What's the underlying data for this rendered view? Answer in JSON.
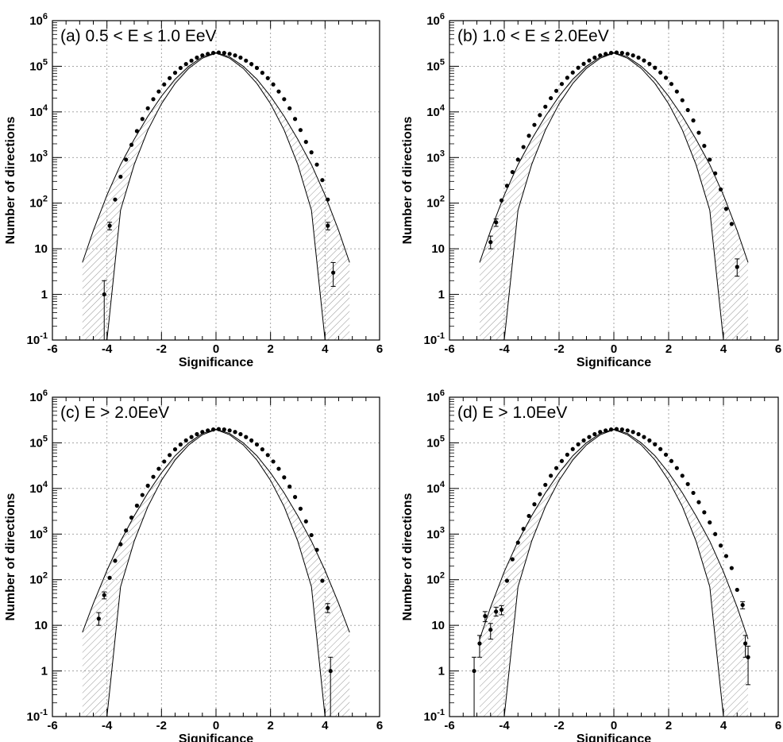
{
  "chart_data": [
    {
      "type": "scatter",
      "panel_label": "(a) 0.5 < E ≤ 1.0 EeV",
      "xlabel": "Significance",
      "ylabel": "Number of directions",
      "xlim": [
        -6,
        6
      ],
      "ylim": [
        0.1,
        1000000
      ],
      "log_y": true,
      "grid": true,
      "x_ticks": [
        "-6",
        "-4",
        "-2",
        "0",
        "2",
        "4",
        "6"
      ],
      "y_ticks": [
        "10-1",
        "1",
        "10",
        "102",
        "103",
        "104",
        "105",
        "106"
      ],
      "band_x": [
        -4.9,
        -4.5,
        -4.0,
        -3.5,
        -3.0,
        -2.5,
        -2.0,
        -1.5,
        -1.0,
        -0.5,
        0.0,
        0.5,
        1.0,
        1.5,
        2.0,
        2.5,
        3.0,
        3.5,
        4.0,
        4.5,
        4.9
      ],
      "band_upper": [
        5,
        25,
        150,
        700,
        2500,
        8000,
        22000,
        52000,
        100000,
        160000,
        200000,
        160000,
        100000,
        52000,
        22000,
        8000,
        2500,
        700,
        150,
        25,
        5
      ],
      "band_lower": [
        0.1,
        0.1,
        0.1,
        70,
        700,
        4000,
        15000,
        42000,
        90000,
        150000,
        195000,
        150000,
        90000,
        42000,
        15000,
        4000,
        700,
        70,
        0.1,
        0.1,
        0.1
      ],
      "points": [
        {
          "x": -4.1,
          "y": 1,
          "err": [
            0.1,
            2
          ]
        },
        {
          "x": -3.9,
          "y": 32,
          "err": [
            26,
            38
          ]
        },
        {
          "x": -3.7,
          "y": 120
        },
        {
          "x": -3.5,
          "y": 380
        },
        {
          "x": -3.3,
          "y": 900
        },
        {
          "x": -3.1,
          "y": 1900
        },
        {
          "x": -2.9,
          "y": 3800
        },
        {
          "x": -2.7,
          "y": 7000
        },
        {
          "x": -2.5,
          "y": 12000
        },
        {
          "x": -2.3,
          "y": 19000
        },
        {
          "x": -2.1,
          "y": 28000
        },
        {
          "x": -1.9,
          "y": 40000
        },
        {
          "x": -1.7,
          "y": 55000
        },
        {
          "x": -1.5,
          "y": 72000
        },
        {
          "x": -1.3,
          "y": 92000
        },
        {
          "x": -1.1,
          "y": 112000
        },
        {
          "x": -0.9,
          "y": 133000
        },
        {
          "x": -0.7,
          "y": 155000
        },
        {
          "x": -0.5,
          "y": 173000
        },
        {
          "x": -0.3,
          "y": 187000
        },
        {
          "x": -0.1,
          "y": 196000
        },
        {
          "x": 0.1,
          "y": 200000
        },
        {
          "x": 0.3,
          "y": 196000
        },
        {
          "x": 0.5,
          "y": 187000
        },
        {
          "x": 0.7,
          "y": 173000
        },
        {
          "x": 0.9,
          "y": 155000
        },
        {
          "x": 1.1,
          "y": 133000
        },
        {
          "x": 1.3,
          "y": 112000
        },
        {
          "x": 1.5,
          "y": 92000
        },
        {
          "x": 1.7,
          "y": 72000
        },
        {
          "x": 1.9,
          "y": 55000
        },
        {
          "x": 2.1,
          "y": 40000
        },
        {
          "x": 2.3,
          "y": 28000
        },
        {
          "x": 2.5,
          "y": 19000
        },
        {
          "x": 2.7,
          "y": 12000
        },
        {
          "x": 2.9,
          "y": 7000
        },
        {
          "x": 3.1,
          "y": 4000
        },
        {
          "x": 3.3,
          "y": 2200
        },
        {
          "x": 3.5,
          "y": 1300
        },
        {
          "x": 3.7,
          "y": 700
        },
        {
          "x": 3.9,
          "y": 320
        },
        {
          "x": 4.1,
          "y": 120
        },
        {
          "x": 4.1,
          "y": 32,
          "err": [
            26,
            38
          ]
        },
        {
          "x": 4.3,
          "y": 3,
          "err": [
            1.5,
            5
          ]
        }
      ]
    },
    {
      "type": "scatter",
      "panel_label": "(b) 1.0 < E ≤ 2.0EeV",
      "xlabel": "Significance",
      "ylabel": "Number of directions",
      "xlim": [
        -6,
        6
      ],
      "ylim": [
        0.1,
        1000000
      ],
      "log_y": true,
      "grid": true,
      "x_ticks": [
        "-6",
        "-4",
        "-2",
        "0",
        "2",
        "4",
        "6"
      ],
      "y_ticks": [
        "10-1",
        "1",
        "10",
        "102",
        "103",
        "104",
        "105",
        "106"
      ],
      "band_x": [
        -4.9,
        -4.5,
        -4.0,
        -3.5,
        -3.0,
        -2.5,
        -2.0,
        -1.5,
        -1.0,
        -0.5,
        0.0,
        0.5,
        1.0,
        1.5,
        2.0,
        2.5,
        3.0,
        3.5,
        4.0,
        4.5,
        4.9
      ],
      "band_upper": [
        5,
        25,
        150,
        700,
        2500,
        8000,
        22000,
        52000,
        100000,
        160000,
        200000,
        160000,
        100000,
        52000,
        22000,
        8000,
        2500,
        700,
        150,
        25,
        5
      ],
      "band_lower": [
        0.1,
        0.1,
        0.1,
        70,
        700,
        4000,
        15000,
        42000,
        90000,
        150000,
        195000,
        150000,
        90000,
        42000,
        15000,
        4000,
        700,
        70,
        0.1,
        0.1,
        0.1
      ],
      "points": [
        {
          "x": -4.5,
          "y": 14,
          "err": [
            10,
            19
          ]
        },
        {
          "x": -4.3,
          "y": 38,
          "err": [
            31,
            45
          ]
        },
        {
          "x": -4.1,
          "y": 115
        },
        {
          "x": -3.9,
          "y": 240
        },
        {
          "x": -3.7,
          "y": 480
        },
        {
          "x": -3.5,
          "y": 900
        },
        {
          "x": -3.3,
          "y": 1700
        },
        {
          "x": -3.1,
          "y": 3000
        },
        {
          "x": -2.9,
          "y": 5200
        },
        {
          "x": -2.7,
          "y": 8500
        },
        {
          "x": -2.5,
          "y": 13000
        },
        {
          "x": -2.3,
          "y": 20000
        },
        {
          "x": -2.1,
          "y": 29000
        },
        {
          "x": -1.9,
          "y": 41000
        },
        {
          "x": -1.7,
          "y": 56000
        },
        {
          "x": -1.5,
          "y": 73000
        },
        {
          "x": -1.3,
          "y": 93000
        },
        {
          "x": -1.1,
          "y": 113000
        },
        {
          "x": -0.9,
          "y": 134000
        },
        {
          "x": -0.7,
          "y": 155000
        },
        {
          "x": -0.5,
          "y": 173000
        },
        {
          "x": -0.3,
          "y": 187000
        },
        {
          "x": -0.1,
          "y": 196000
        },
        {
          "x": 0.1,
          "y": 200000
        },
        {
          "x": 0.3,
          "y": 196000
        },
        {
          "x": 0.5,
          "y": 187000
        },
        {
          "x": 0.7,
          "y": 173000
        },
        {
          "x": 0.9,
          "y": 155000
        },
        {
          "x": 1.1,
          "y": 134000
        },
        {
          "x": 1.3,
          "y": 113000
        },
        {
          "x": 1.5,
          "y": 93000
        },
        {
          "x": 1.7,
          "y": 73000
        },
        {
          "x": 1.9,
          "y": 56000
        },
        {
          "x": 2.1,
          "y": 41000
        },
        {
          "x": 2.3,
          "y": 28000
        },
        {
          "x": 2.5,
          "y": 18000
        },
        {
          "x": 2.7,
          "y": 11000
        },
        {
          "x": 2.9,
          "y": 6500
        },
        {
          "x": 3.1,
          "y": 3500
        },
        {
          "x": 3.3,
          "y": 1800
        },
        {
          "x": 3.5,
          "y": 900
        },
        {
          "x": 3.7,
          "y": 450
        },
        {
          "x": 3.9,
          "y": 200
        },
        {
          "x": 4.1,
          "y": 75
        },
        {
          "x": 4.3,
          "y": 35
        },
        {
          "x": 4.5,
          "y": 4,
          "err": [
            2.5,
            6
          ]
        }
      ]
    },
    {
      "type": "scatter",
      "panel_label": "(c) E > 2.0EeV",
      "xlabel": "Significance",
      "ylabel": "Number of directions",
      "xlim": [
        -6,
        6
      ],
      "ylim": [
        0.1,
        1000000
      ],
      "log_y": true,
      "grid": true,
      "x_ticks": [
        "-6",
        "-4",
        "-2",
        "0",
        "2",
        "4",
        "6"
      ],
      "y_ticks": [
        "10-1",
        "1",
        "10",
        "102",
        "103",
        "104",
        "105",
        "106"
      ],
      "band_x": [
        -4.9,
        -4.5,
        -4.0,
        -3.5,
        -3.0,
        -2.5,
        -2.0,
        -1.5,
        -1.0,
        -0.5,
        0.0,
        0.5,
        1.0,
        1.5,
        2.0,
        2.5,
        3.0,
        3.5,
        4.0,
        4.5,
        4.9
      ],
      "band_upper": [
        7,
        30,
        160,
        700,
        2500,
        8000,
        22000,
        52000,
        100000,
        160000,
        200000,
        160000,
        100000,
        52000,
        22000,
        8000,
        2500,
        700,
        160,
        30,
        7
      ],
      "band_lower": [
        0.1,
        0.1,
        0.1,
        70,
        700,
        4000,
        15000,
        42000,
        90000,
        150000,
        195000,
        150000,
        90000,
        42000,
        15000,
        4000,
        700,
        70,
        0.1,
        0.1,
        0.1
      ],
      "points": [
        {
          "x": -4.3,
          "y": 14,
          "err": [
            10,
            19
          ]
        },
        {
          "x": -4.1,
          "y": 46,
          "err": [
            38,
            54
          ]
        },
        {
          "x": -3.9,
          "y": 110
        },
        {
          "x": -3.7,
          "y": 260
        },
        {
          "x": -3.5,
          "y": 600
        },
        {
          "x": -3.3,
          "y": 1200
        },
        {
          "x": -3.1,
          "y": 2300
        },
        {
          "x": -2.9,
          "y": 4200
        },
        {
          "x": -2.7,
          "y": 7200
        },
        {
          "x": -2.5,
          "y": 11500
        },
        {
          "x": -2.3,
          "y": 18000
        },
        {
          "x": -2.1,
          "y": 27000
        },
        {
          "x": -1.9,
          "y": 39000
        },
        {
          "x": -1.7,
          "y": 54000
        },
        {
          "x": -1.5,
          "y": 72000
        },
        {
          "x": -1.3,
          "y": 92000
        },
        {
          "x": -1.1,
          "y": 113000
        },
        {
          "x": -0.9,
          "y": 134000
        },
        {
          "x": -0.7,
          "y": 155000
        },
        {
          "x": -0.5,
          "y": 173000
        },
        {
          "x": -0.3,
          "y": 187000
        },
        {
          "x": -0.1,
          "y": 196000
        },
        {
          "x": 0.1,
          "y": 200000
        },
        {
          "x": 0.3,
          "y": 196000
        },
        {
          "x": 0.5,
          "y": 187000
        },
        {
          "x": 0.7,
          "y": 173000
        },
        {
          "x": 0.9,
          "y": 155000
        },
        {
          "x": 1.1,
          "y": 134000
        },
        {
          "x": 1.3,
          "y": 113000
        },
        {
          "x": 1.5,
          "y": 92000
        },
        {
          "x": 1.7,
          "y": 72000
        },
        {
          "x": 1.9,
          "y": 54000
        },
        {
          "x": 2.1,
          "y": 39000
        },
        {
          "x": 2.3,
          "y": 27000
        },
        {
          "x": 2.5,
          "y": 17500
        },
        {
          "x": 2.7,
          "y": 11000
        },
        {
          "x": 2.9,
          "y": 6500
        },
        {
          "x": 3.1,
          "y": 3600
        },
        {
          "x": 3.3,
          "y": 1900
        },
        {
          "x": 3.5,
          "y": 950
        },
        {
          "x": 3.7,
          "y": 450
        },
        {
          "x": 3.9,
          "y": 95
        },
        {
          "x": 4.1,
          "y": 24,
          "err": [
            19,
            30
          ]
        },
        {
          "x": 4.2,
          "y": 1,
          "err": [
            0.1,
            2
          ]
        }
      ]
    },
    {
      "type": "scatter",
      "panel_label": "(d) E > 1.0EeV",
      "xlabel": "Significance",
      "ylabel": "Number of directions",
      "xlim": [
        -6,
        6
      ],
      "ylim": [
        0.1,
        1000000
      ],
      "log_y": true,
      "grid": true,
      "x_ticks": [
        "-6",
        "-4",
        "-2",
        "0",
        "2",
        "4",
        "6"
      ],
      "y_ticks": [
        "10-1",
        "1",
        "10",
        "102",
        "103",
        "104",
        "105",
        "106"
      ],
      "band_x": [
        -4.9,
        -4.5,
        -4.0,
        -3.5,
        -3.0,
        -2.5,
        -2.0,
        -1.5,
        -1.0,
        -0.5,
        0.0,
        0.5,
        1.0,
        1.5,
        2.0,
        2.5,
        3.0,
        3.5,
        4.0,
        4.5,
        4.9
      ],
      "band_upper": [
        5,
        25,
        150,
        700,
        2500,
        8000,
        22000,
        52000,
        100000,
        160000,
        200000,
        160000,
        100000,
        52000,
        22000,
        8000,
        2500,
        700,
        150,
        25,
        5
      ],
      "band_lower": [
        0.1,
        0.1,
        0.1,
        70,
        700,
        4000,
        15000,
        42000,
        90000,
        150000,
        195000,
        150000,
        90000,
        42000,
        15000,
        4000,
        700,
        70,
        0.1,
        0.1,
        0.1
      ],
      "points": [
        {
          "x": -5.1,
          "y": 1,
          "err": [
            0.1,
            2
          ]
        },
        {
          "x": -4.9,
          "y": 4,
          "err": [
            2,
            6
          ]
        },
        {
          "x": -4.7,
          "y": 16,
          "err": [
            12,
            20
          ]
        },
        {
          "x": -4.5,
          "y": 8,
          "err": [
            5,
            11
          ]
        },
        {
          "x": -4.3,
          "y": 20,
          "err": [
            16,
            25
          ]
        },
        {
          "x": -4.1,
          "y": 22,
          "err": [
            17,
            27
          ]
        },
        {
          "x": -3.9,
          "y": 95
        },
        {
          "x": -3.7,
          "y": 280
        },
        {
          "x": -3.5,
          "y": 650
        },
        {
          "x": -3.3,
          "y": 1300
        },
        {
          "x": -3.1,
          "y": 2500
        },
        {
          "x": -2.9,
          "y": 4500
        },
        {
          "x": -2.7,
          "y": 7500
        },
        {
          "x": -2.5,
          "y": 12000
        },
        {
          "x": -2.3,
          "y": 19000
        },
        {
          "x": -2.1,
          "y": 28000
        },
        {
          "x": -1.9,
          "y": 40000
        },
        {
          "x": -1.7,
          "y": 55000
        },
        {
          "x": -1.5,
          "y": 73000
        },
        {
          "x": -1.3,
          "y": 93000
        },
        {
          "x": -1.1,
          "y": 113000
        },
        {
          "x": -0.9,
          "y": 134000
        },
        {
          "x": -0.7,
          "y": 155000
        },
        {
          "x": -0.5,
          "y": 173000
        },
        {
          "x": -0.3,
          "y": 187000
        },
        {
          "x": -0.1,
          "y": 196000
        },
        {
          "x": 0.1,
          "y": 200000
        },
        {
          "x": 0.3,
          "y": 196000
        },
        {
          "x": 0.5,
          "y": 187000
        },
        {
          "x": 0.7,
          "y": 173000
        },
        {
          "x": 0.9,
          "y": 155000
        },
        {
          "x": 1.1,
          "y": 134000
        },
        {
          "x": 1.3,
          "y": 113000
        },
        {
          "x": 1.5,
          "y": 93000
        },
        {
          "x": 1.7,
          "y": 73000
        },
        {
          "x": 1.9,
          "y": 55000
        },
        {
          "x": 2.1,
          "y": 40000
        },
        {
          "x": 2.3,
          "y": 28000
        },
        {
          "x": 2.5,
          "y": 19000
        },
        {
          "x": 2.7,
          "y": 12500
        },
        {
          "x": 2.9,
          "y": 8000
        },
        {
          "x": 3.1,
          "y": 5000
        },
        {
          "x": 3.3,
          "y": 3000
        },
        {
          "x": 3.5,
          "y": 1800
        },
        {
          "x": 3.7,
          "y": 1000
        },
        {
          "x": 3.9,
          "y": 560
        },
        {
          "x": 4.1,
          "y": 330
        },
        {
          "x": 4.3,
          "y": 180
        },
        {
          "x": 4.5,
          "y": 60
        },
        {
          "x": 4.7,
          "y": 28,
          "err": [
            23,
            33
          ]
        },
        {
          "x": 4.8,
          "y": 4,
          "err": [
            2,
            6
          ]
        },
        {
          "x": 4.9,
          "y": 2,
          "err": [
            0.5,
            3.5
          ]
        }
      ]
    }
  ]
}
